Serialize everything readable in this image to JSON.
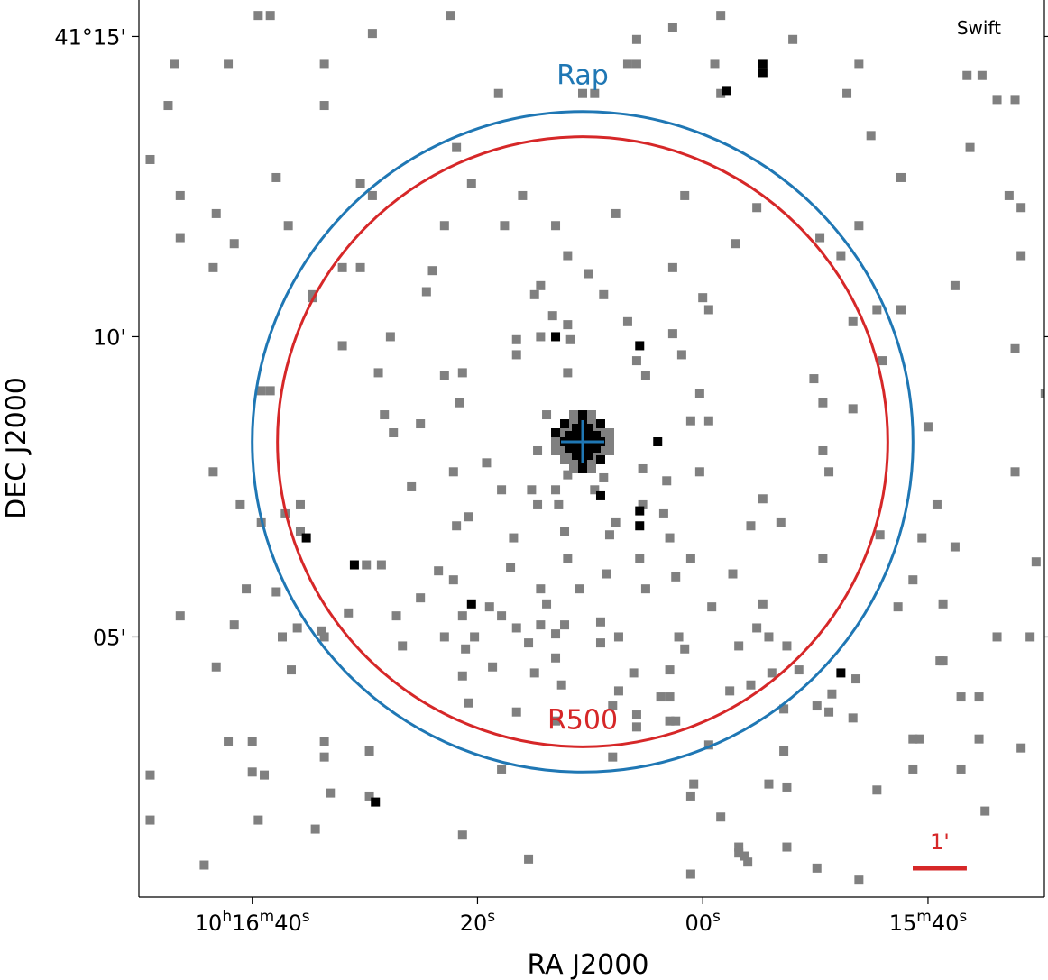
{
  "chart_data": {
    "type": "heatmap",
    "description_units": "arcminutes offset from image center (RA positive toward east / left)",
    "telescope": "Swift",
    "xlabel": "RA J2000",
    "ylabel": "DEC J2000",
    "x_ticks": [
      {
        "pre": "10",
        "sup1": "h",
        "mid": "16",
        "sup2": "m",
        "post": "40",
        "sup3": "s"
      },
      {
        "pre": "",
        "sup1": "",
        "mid": "",
        "sup2": "",
        "post": "20",
        "sup3": "s"
      },
      {
        "pre": "",
        "sup1": "",
        "mid": "",
        "sup2": "",
        "post": "00",
        "sup3": "s"
      },
      {
        "pre": "",
        "sup1": "",
        "mid": "15",
        "sup2": "m",
        "post": "40",
        "sup3": "s"
      }
    ],
    "y_ticks": [
      "41°15'",
      "10'",
      "05'"
    ],
    "x_tick_offsets_arcmin": [
      5.5,
      1.75,
      -2.0,
      -5.75
    ],
    "y_tick_offsets_arcmin": [
      6.75,
      1.75,
      -3.25
    ],
    "center_cross": {
      "ra_offset_arcmin": 0.0,
      "dec_offset_arcmin": 0.0,
      "color": "#1f77b4"
    },
    "circles": [
      {
        "name": "Rap",
        "radius_arcmin": 5.5,
        "color": "#1f77b4"
      },
      {
        "name": "R500",
        "radius_arcmin": 5.08,
        "color": "#d62728"
      }
    ],
    "scale_bar": {
      "label": "1'",
      "length_arcmin": 1.0,
      "color": "#d62728"
    },
    "count_levels": {
      "gray": "#808080",
      "black": "#000000"
    },
    "bright_pixels_arcmin": [
      [
        0.0,
        0.0
      ],
      [
        0.3,
        0.0
      ],
      [
        -0.3,
        0.0
      ],
      [
        0.0,
        0.3
      ],
      [
        0.0,
        -0.3
      ],
      [
        0.45,
        0.15
      ],
      [
        -0.3,
        -0.3
      ],
      [
        0.0,
        0.45
      ],
      [
        0.0,
        -0.45
      ],
      [
        -0.3,
        0.3
      ],
      [
        0.3,
        0.3
      ],
      [
        0.45,
        1.75
      ],
      [
        -0.95,
        1.6
      ],
      [
        -1.25,
        0.0
      ],
      [
        -0.3,
        -0.9
      ],
      [
        -0.95,
        -1.15
      ],
      [
        -0.95,
        -1.4
      ],
      [
        1.85,
        -2.7
      ],
      [
        4.6,
        -1.6
      ],
      [
        3.8,
        -2.05
      ],
      [
        -4.3,
        -3.85
      ],
      [
        3.45,
        -6.0
      ],
      [
        -2.4,
        5.85
      ],
      [
        -3.0,
        6.3
      ],
      [
        -3.0,
        6.15
      ]
    ],
    "dim_pixels_arcmin": [
      [
        5.4,
        7.1
      ],
      [
        5.2,
        7.1
      ],
      [
        2.2,
        7.1
      ],
      [
        -2.3,
        7.1
      ],
      [
        -1.5,
        6.9
      ],
      [
        3.5,
        6.8
      ],
      [
        -0.9,
        6.7
      ],
      [
        -3.5,
        6.7
      ],
      [
        6.8,
        6.3
      ],
      [
        5.9,
        6.3
      ],
      [
        4.3,
        6.3
      ],
      [
        -0.75,
        6.3
      ],
      [
        -0.9,
        6.3
      ],
      [
        -2.2,
        6.3
      ],
      [
        -4.6,
        6.3
      ],
      [
        -6.4,
        6.1
      ],
      [
        -6.65,
        6.1
      ],
      [
        1.4,
        5.8
      ],
      [
        -0.2,
        5.8
      ],
      [
        -2.3,
        5.8
      ],
      [
        -4.4,
        5.8
      ],
      [
        -6.9,
        5.7
      ],
      [
        -7.2,
        5.7
      ],
      [
        6.9,
        5.6
      ],
      [
        4.3,
        5.6
      ],
      [
        0.0,
        5.8
      ],
      [
        -3.0,
        6.15
      ],
      [
        -4.8,
        5.1
      ],
      [
        2.1,
        4.9
      ],
      [
        -5.3,
        4.4
      ],
      [
        5.1,
        4.4
      ],
      [
        3.7,
        4.3
      ],
      [
        1.85,
        4.3
      ],
      [
        -1.7,
        4.1
      ],
      [
        -7.1,
        4.1
      ],
      [
        -6.45,
        4.9
      ],
      [
        7.2,
        4.7
      ],
      [
        3.5,
        4.1
      ],
      [
        1.0,
        4.1
      ],
      [
        6.7,
        4.1
      ],
      [
        6.1,
        3.8
      ],
      [
        1.3,
        3.6
      ],
      [
        -4.6,
        3.6
      ],
      [
        -7.3,
        3.9
      ],
      [
        -2.9,
        3.9
      ],
      [
        -0.55,
        3.8
      ],
      [
        4.9,
        3.6
      ],
      [
        -2.55,
        3.3
      ],
      [
        5.8,
        3.3
      ],
      [
        -6.2,
        2.6
      ],
      [
        -0.1,
        2.8
      ],
      [
        -3.95,
        3.4
      ],
      [
        2.3,
        3.6
      ],
      [
        0.45,
        3.6
      ],
      [
        6.7,
        3.4
      ],
      [
        2.5,
        2.85
      ],
      [
        0.5,
        2.1
      ],
      [
        -2.0,
        2.4
      ],
      [
        -4.3,
        3.1
      ],
      [
        -7.3,
        3.1
      ],
      [
        -1.5,
        2.9
      ],
      [
        0.25,
        3.1
      ],
      [
        6.15,
        2.9
      ],
      [
        4.0,
        2.9
      ],
      [
        3.7,
        2.9
      ],
      [
        0.7,
        2.6
      ],
      [
        -0.35,
        2.45
      ],
      [
        0.8,
        2.45
      ],
      [
        -5.3,
        2.2
      ],
      [
        -4.9,
        2.2
      ],
      [
        -2.1,
        2.2
      ],
      [
        4.5,
        2.4
      ],
      [
        4.5,
        2.45
      ],
      [
        0.25,
        1.95
      ],
      [
        0.2,
        1.7
      ],
      [
        -0.75,
        2.0
      ],
      [
        -4.5,
        2.0
      ],
      [
        2.6,
        2.5
      ],
      [
        1.1,
        1.7
      ],
      [
        -1.5,
        1.8
      ],
      [
        0.7,
        1.75
      ],
      [
        3.2,
        1.75
      ],
      [
        4.0,
        1.6
      ],
      [
        -1.65,
        1.45
      ],
      [
        -7.2,
        1.55
      ],
      [
        -5.0,
        1.35
      ],
      [
        1.1,
        1.45
      ],
      [
        0.25,
        1.15
      ],
      [
        -1.05,
        1.1
      ],
      [
        2.3,
        1.1
      ],
      [
        -0.9,
        1.35
      ],
      [
        2.0,
        1.15
      ],
      [
        3.4,
        1.15
      ],
      [
        -3.85,
        1.05
      ],
      [
        -1.95,
        0.8
      ],
      [
        -7.7,
        0.8
      ],
      [
        -4.0,
        0.65
      ],
      [
        -4.5,
        0.55
      ],
      [
        5.35,
        0.85
      ],
      [
        5.2,
        0.85
      ],
      [
        2.05,
        0.65
      ],
      [
        -1.8,
        0.35
      ],
      [
        -2.1,
        0.35
      ],
      [
        3.3,
        0.45
      ],
      [
        0.6,
        0.45
      ],
      [
        2.7,
        0.3
      ],
      [
        -5.75,
        0.25
      ],
      [
        3.15,
        0.15
      ],
      [
        0.75,
        -0.15
      ],
      [
        2.15,
        -0.5
      ],
      [
        1.6,
        -0.35
      ],
      [
        -4.0,
        -0.15
      ],
      [
        0.25,
        -0.55
      ],
      [
        -1.95,
        -0.5
      ],
      [
        6.15,
        -0.5
      ],
      [
        -7.2,
        -0.5
      ],
      [
        -4.1,
        -0.5
      ],
      [
        -0.35,
        -0.6
      ],
      [
        -1.0,
        -0.45
      ],
      [
        -1.4,
        -0.65
      ],
      [
        1.35,
        -0.8
      ],
      [
        0.85,
        -0.8
      ],
      [
        -0.2,
        -0.8
      ],
      [
        2.85,
        -0.75
      ],
      [
        0.4,
        -1.05
      ],
      [
        0.45,
        -0.8
      ],
      [
        -3.0,
        -0.95
      ],
      [
        5.7,
        -1.05
      ],
      [
        4.7,
        -1.05
      ],
      [
        0.75,
        -1.05
      ],
      [
        -1.0,
        -1.05
      ],
      [
        -5.9,
        -1.05
      ],
      [
        -1.35,
        -1.2
      ],
      [
        2.1,
        -1.4
      ],
      [
        5.35,
        -1.35
      ],
      [
        4.95,
        -1.2
      ],
      [
        0.3,
        -1.5
      ],
      [
        1.9,
        -1.25
      ],
      [
        -0.55,
        -1.35
      ],
      [
        -2.8,
        -1.4
      ],
      [
        4.7,
        -1.5
      ],
      [
        1.15,
        -1.6
      ],
      [
        -0.45,
        -1.55
      ],
      [
        -1.45,
        -1.6
      ],
      [
        -3.3,
        -1.35
      ],
      [
        -4.95,
        -1.55
      ],
      [
        -5.65,
        -1.6
      ],
      [
        -6.2,
        -1.75
      ],
      [
        -4.0,
        -1.95
      ],
      [
        -1.8,
        -1.95
      ],
      [
        3.6,
        -2.05
      ],
      [
        -0.95,
        -1.95
      ],
      [
        0.25,
        -1.95
      ],
      [
        2.15,
        -2.3
      ],
      [
        3.35,
        -2.05
      ],
      [
        2.4,
        -2.15
      ],
      [
        1.2,
        -2.1
      ],
      [
        -1.55,
        -2.25
      ],
      [
        -0.4,
        -2.2
      ],
      [
        -2.5,
        -2.2
      ],
      [
        -7.55,
        -2.0
      ],
      [
        5.6,
        -2.45
      ],
      [
        5.1,
        -2.5
      ],
      [
        0.7,
        -2.45
      ],
      [
        0.05,
        -2.45
      ],
      [
        -3.0,
        -2.7
      ],
      [
        -6.0,
        -2.7
      ],
      [
        -5.5,
        -2.3
      ],
      [
        0.6,
        -2.7
      ],
      [
        3.1,
        -2.9
      ],
      [
        6.7,
        -2.9
      ],
      [
        3.9,
        -2.85
      ],
      [
        2.7,
        -2.6
      ],
      [
        1.55,
        -2.75
      ],
      [
        -1.05,
        -2.45
      ],
      [
        0.45,
        -3.2
      ],
      [
        4.35,
        -3.15
      ],
      [
        4.75,
        -3.1
      ],
      [
        1.35,
        -2.9
      ],
      [
        2.0,
        -2.9
      ],
      [
        1.1,
        -3.1
      ],
      [
        0.7,
        -3.05
      ],
      [
        -0.3,
        -3.0
      ],
      [
        -2.15,
        -2.75
      ],
      [
        -5.25,
        -2.75
      ],
      [
        -0.3,
        -3.35
      ],
      [
        5.8,
        -3.05
      ],
      [
        -3.4,
        -3.4
      ],
      [
        -6.9,
        -3.25
      ],
      [
        -7.45,
        -3.25
      ],
      [
        1.8,
        -3.25
      ],
      [
        2.3,
        -3.25
      ],
      [
        -0.6,
        -3.25
      ],
      [
        0.3,
        -3.05
      ],
      [
        0.9,
        -3.35
      ],
      [
        -2.9,
        -3.1
      ],
      [
        0.8,
        -3.85
      ],
      [
        -4.55,
        -3.95
      ],
      [
        -0.85,
        -3.85
      ],
      [
        -1.7,
        -3.45
      ],
      [
        -1.6,
        -3.25
      ],
      [
        1.95,
        -3.45
      ],
      [
        2.0,
        -3.9
      ],
      [
        -2.6,
        -3.4
      ],
      [
        -3.1,
        -3.25
      ],
      [
        4.3,
        -3.25
      ],
      [
        5.0,
        -3.25
      ],
      [
        3.0,
        -3.4
      ],
      [
        1.5,
        -3.75
      ],
      [
        0.45,
        -3.6
      ],
      [
        4.85,
        -3.8
      ],
      [
        -0.6,
        -4.15
      ],
      [
        0.35,
        -4.05
      ],
      [
        6.1,
        -3.75
      ],
      [
        -1.3,
        -4.25
      ],
      [
        -1.45,
        -4.25
      ],
      [
        -2.45,
        -4.15
      ],
      [
        -3.15,
        -3.85
      ],
      [
        -3.6,
        -3.8
      ],
      [
        -6.0,
        -3.65
      ],
      [
        -5.95,
        -3.65
      ],
      [
        1.9,
        -4.35
      ],
      [
        -1.45,
        -3.8
      ],
      [
        -4.15,
        -4.2
      ],
      [
        -6.6,
        -4.25
      ],
      [
        -6.3,
        -4.25
      ],
      [
        1.1,
        -4.5
      ],
      [
        0.45,
        -4.65
      ],
      [
        -0.5,
        -4.4
      ],
      [
        -2.8,
        -4.05
      ],
      [
        -3.9,
        -4.4
      ],
      [
        -4.1,
        -4.5
      ],
      [
        -0.9,
        -4.55
      ],
      [
        -1.45,
        -4.65
      ],
      [
        -3.35,
        -4.45
      ],
      [
        -4.5,
        -4.6
      ],
      [
        -5.5,
        -4.95
      ],
      [
        -5.6,
        -4.95
      ],
      [
        -6.6,
        -4.95
      ],
      [
        -7.3,
        -5.1
      ],
      [
        -3.35,
        -5.15
      ],
      [
        -2.1,
        -5.05
      ],
      [
        -0.9,
        -4.75
      ],
      [
        -1.55,
        -4.65
      ],
      [
        5.9,
        -5.0
      ],
      [
        5.5,
        -5.0
      ],
      [
        4.3,
        -5.25
      ],
      [
        3.55,
        -5.15
      ],
      [
        -0.5,
        -5.25
      ],
      [
        5.5,
        -5.5
      ],
      [
        4.3,
        -5.0
      ],
      [
        -5.5,
        -5.45
      ],
      [
        -6.3,
        -5.45
      ],
      [
        1.35,
        -5.45
      ],
      [
        -3.4,
        -5.75
      ],
      [
        -1.85,
        -5.7
      ],
      [
        5.3,
        -5.55
      ],
      [
        7.2,
        -5.55
      ],
      [
        4.2,
        -5.85
      ],
      [
        -4.9,
        -5.8
      ],
      [
        -3.1,
        -5.7
      ],
      [
        3.55,
        -5.9
      ],
      [
        -1.8,
        -5.9
      ],
      [
        -2.3,
        -6.25
      ],
      [
        -6.7,
        -6.15
      ],
      [
        5.4,
        -6.3
      ],
      [
        7.2,
        -6.3
      ],
      [
        2.0,
        -6.55
      ],
      [
        4.45,
        -6.45
      ],
      [
        -3.4,
        -6.75
      ],
      [
        -2.6,
        -6.75
      ],
      [
        -2.6,
        -6.85
      ],
      [
        -2.7,
        -6.9
      ],
      [
        -2.75,
        -7.0
      ],
      [
        0.9,
        -6.95
      ],
      [
        -1.8,
        -7.2
      ],
      [
        -4.6,
        -7.3
      ],
      [
        -3.9,
        -7.1
      ],
      [
        6.3,
        -7.05
      ]
    ]
  }
}
